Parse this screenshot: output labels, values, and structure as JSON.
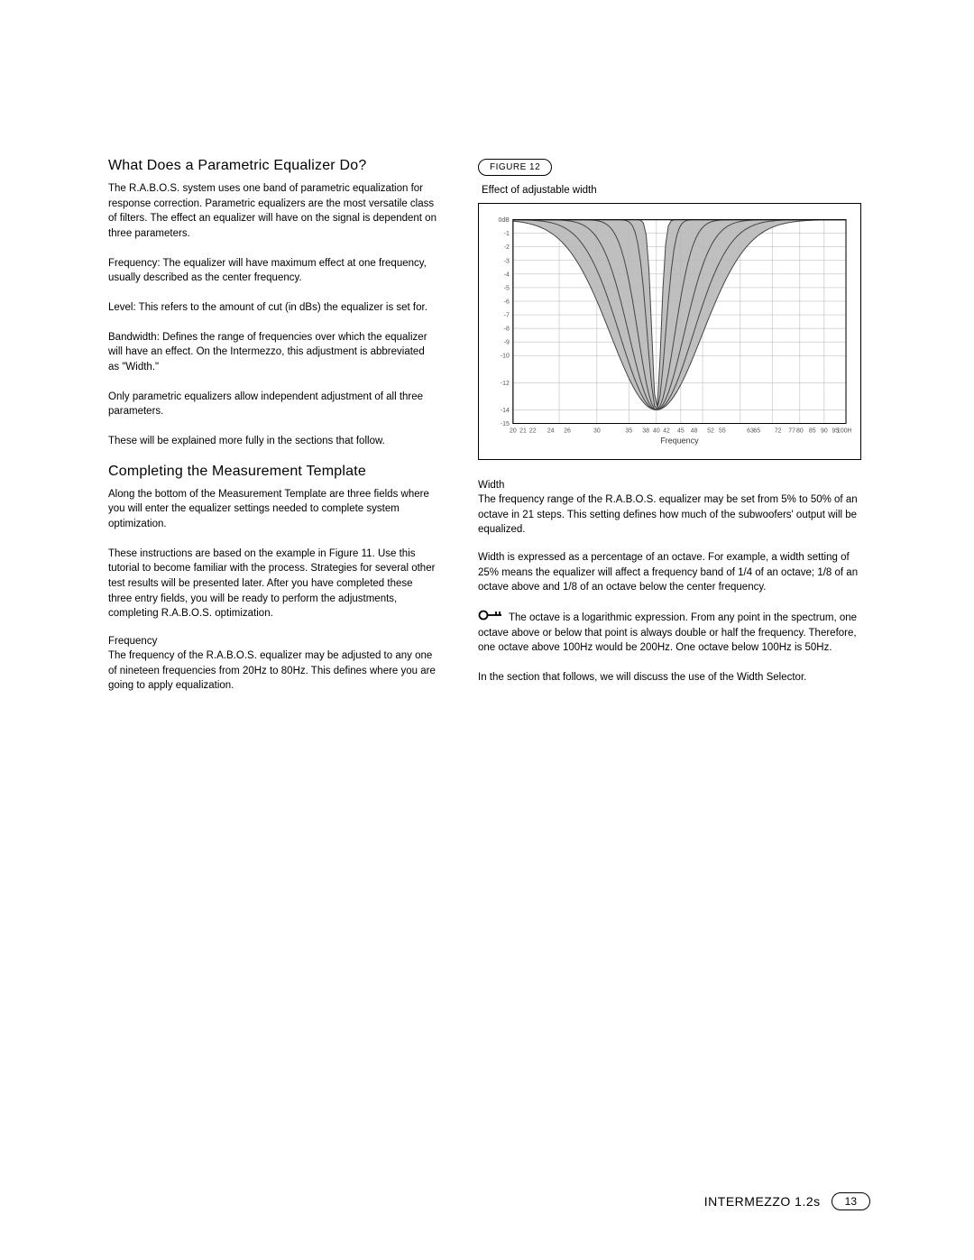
{
  "left": {
    "heading1": "What Does a Parametric Equalizer Do?",
    "p1": "The R.A.B.O.S. system uses one band of parametric equalization for response correction. Parametric equalizers are the most versatile class of filters. The effect an equalizer will have on the signal is dependent on three parameters.",
    "p2": "Frequency: The equalizer will have maximum effect at one frequency, usually described as the center frequency.",
    "p3": "Level: This refers to the amount of cut (in dBs) the equalizer is set for.",
    "p4": "Bandwidth: Defines the range of frequencies over which the equalizer will have an effect. On the Intermezzo, this adjustment is abbreviated as \"Width.\"",
    "p5": "Only parametric equalizers allow independent adjustment of all three parameters.",
    "p6": "These will be explained more fully in the sections that follow.",
    "heading2": "Completing the Measurement Template",
    "p7": "Along the bottom of the Measurement Template are three fields where you will enter the equalizer settings needed to complete system optimization.",
    "p8": "These instructions are based on the example in Figure 11. Use this tutorial to become familiar with the process. Strategies for several other test results will be presented later. After you have completed these three entry fields, you will be ready to perform the adjustments, completing R.A.B.O.S. optimization.",
    "sub1": "Frequency",
    "p9": "The frequency of the R.A.B.O.S. equalizer may be adjusted to any one of nineteen frequencies from 20Hz to 80Hz. This defines where you are going to apply equalization."
  },
  "right": {
    "fig_label": "FIGURE 12",
    "fig_caption": "Effect of adjustable width",
    "sub1": "Width",
    "p1": "The frequency range of the R.A.B.O.S. equalizer may be set from 5% to 50% of an octave in 21 steps. This setting defines how much of the subwoofers' output will be equalized.",
    "p2": "Width is expressed as a percentage of an octave. For example, a width setting of 25% means the equalizer will affect a frequency band of 1/4 of an octave; 1/8 of an octave above and 1/8 of an octave below the center frequency.",
    "p3": "The octave is a logarithmic expression. From any point in the spectrum, one octave above or below that point is always double or half the frequency. Therefore, one octave above 100Hz would be 200Hz. One octave below 100Hz is 50Hz.",
    "p4": "In the section that follows, we will discuss the use of the Width Selector."
  },
  "chart": {
    "type": "notch-filter-family",
    "background_color": "#ffffff",
    "fill_color": "#b8b8b8",
    "grid_color": "#b0b0b0",
    "border_color": "#000000",
    "axis_label_color": "#555555",
    "x_axis_label": "Frequency",
    "y_label_top": "0dB",
    "y_ticks": [
      "0dB",
      "-1",
      "-2",
      "-3",
      "-4",
      "-5",
      "-6",
      "-7",
      "-8",
      "-9",
      "-10",
      "-12",
      "-14",
      "-15"
    ],
    "x_ticks": [
      "20",
      "21",
      "22",
      "24",
      "26",
      "30",
      "35",
      "38",
      "40",
      "42",
      "45",
      "48",
      "52",
      "55",
      "63",
      "65",
      "72",
      "77",
      "80",
      "85",
      "90",
      "95",
      "100Hz"
    ],
    "center_freq": 40,
    "min_db": -14,
    "curves_width_pct": [
      50,
      40,
      30,
      20,
      10,
      5
    ],
    "line_width": 1.0,
    "tick_fontsize": 7
  },
  "footer": {
    "title": "INTERMEZZO 1.2s",
    "page": "13"
  }
}
